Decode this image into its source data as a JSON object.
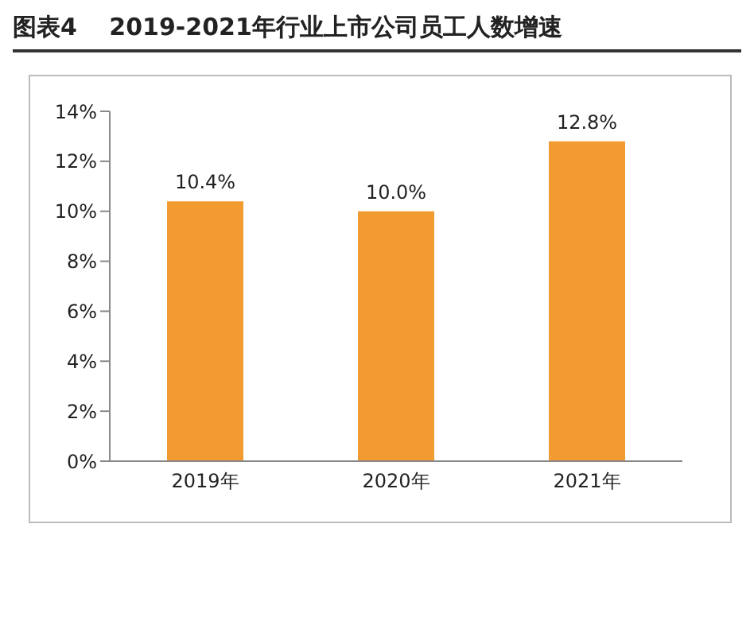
{
  "chart_data": {
    "type": "bar",
    "title": "图表4　 2019-2021年行业上市公司员工人数增速",
    "categories": [
      "2019年",
      "2020年",
      "2021年"
    ],
    "values": [
      10.4,
      10.0,
      12.8
    ],
    "value_labels": [
      "10.4%",
      "10.0%",
      "12.8%"
    ],
    "color": "#f29b30",
    "ylim": [
      0,
      14
    ],
    "yticks": [
      {
        "value": 0,
        "label": "0%"
      },
      {
        "value": 2,
        "label": "2%"
      },
      {
        "value": 4,
        "label": "4%"
      },
      {
        "value": 6,
        "label": "6%"
      },
      {
        "value": 8,
        "label": "8%"
      },
      {
        "value": 10,
        "label": "10%"
      },
      {
        "value": 12,
        "label": "12%"
      },
      {
        "value": 14,
        "label": "14%"
      }
    ],
    "grid": false,
    "legend": false
  }
}
